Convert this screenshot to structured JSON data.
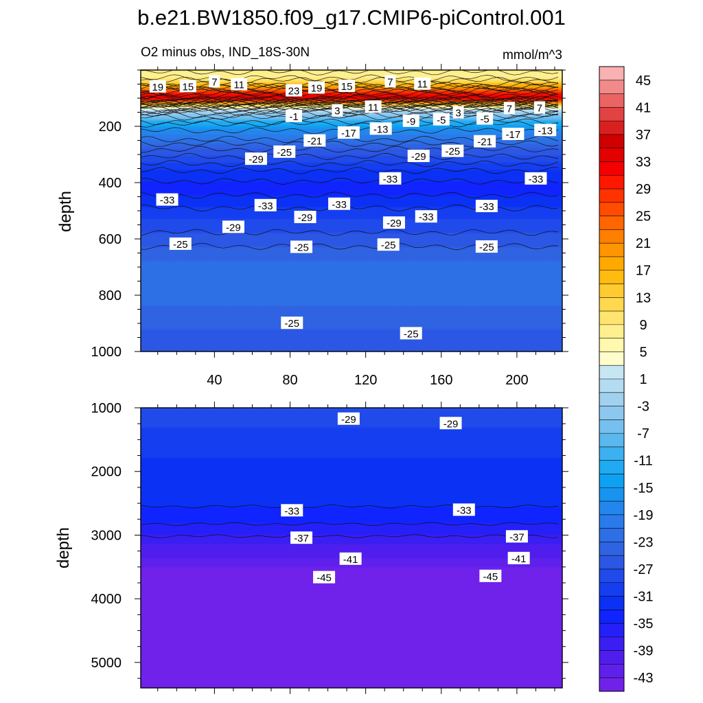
{
  "title": "b.e21.BW1850.f09_g17.CMIP6-piControl.001",
  "subtitle_left": "O2 minus obs, IND_18S-30N",
  "subtitle_right": "mmol/m^3",
  "chart_data": {
    "type": "heatmap",
    "x": {
      "range": [
        1,
        224
      ],
      "ticks": [
        40,
        80,
        120,
        160,
        200
      ],
      "label": ""
    },
    "panels": [
      {
        "name": "upper",
        "ylabel": "depth",
        "ylim": [
          0,
          1000
        ],
        "yticks": [
          200,
          400,
          600,
          800,
          1000
        ],
        "profile": [
          {
            "depth": 0,
            "value": 10
          },
          {
            "depth": 20,
            "value": 7
          },
          {
            "depth": 45,
            "value": 13
          },
          {
            "depth": 70,
            "value": 24
          },
          {
            "depth": 85,
            "value": 30
          },
          {
            "depth": 100,
            "value": 34
          },
          {
            "depth": 115,
            "value": 22
          },
          {
            "depth": 130,
            "value": 8
          },
          {
            "depth": 150,
            "value": -2
          },
          {
            "depth": 175,
            "value": -9
          },
          {
            "depth": 200,
            "value": -15
          },
          {
            "depth": 230,
            "value": -19
          },
          {
            "depth": 270,
            "value": -24
          },
          {
            "depth": 320,
            "value": -28
          },
          {
            "depth": 370,
            "value": -32
          },
          {
            "depth": 420,
            "value": -34
          },
          {
            "depth": 470,
            "value": -32
          },
          {
            "depth": 530,
            "value": -29
          },
          {
            "depth": 600,
            "value": -26
          },
          {
            "depth": 680,
            "value": -23
          },
          {
            "depth": 760,
            "value": -21
          },
          {
            "depth": 840,
            "value": -23
          },
          {
            "depth": 920,
            "value": -25
          },
          {
            "depth": 1000,
            "value": -27
          }
        ],
        "contour_labels": [
          {
            "text": "19",
            "x": 10,
            "depth": 58
          },
          {
            "text": "15",
            "x": 26,
            "depth": 57
          },
          {
            "text": "7",
            "x": 40,
            "depth": 40
          },
          {
            "text": "11",
            "x": 53,
            "depth": 50
          },
          {
            "text": "23",
            "x": 82,
            "depth": 72
          },
          {
            "text": "19",
            "x": 94,
            "depth": 62
          },
          {
            "text": "15",
            "x": 110,
            "depth": 56
          },
          {
            "text": "7",
            "x": 133,
            "depth": 40
          },
          {
            "text": "11",
            "x": 150,
            "depth": 48
          },
          {
            "text": "-1",
            "x": 82,
            "depth": 163
          },
          {
            "text": "3",
            "x": 105,
            "depth": 143
          },
          {
            "text": "11",
            "x": 124,
            "depth": 130
          },
          {
            "text": "-9",
            "x": 144,
            "depth": 180
          },
          {
            "text": "-5",
            "x": 160,
            "depth": 175
          },
          {
            "text": "3",
            "x": 169,
            "depth": 150
          },
          {
            "text": "-5",
            "x": 183,
            "depth": 172
          },
          {
            "text": "7",
            "x": 196,
            "depth": 135
          },
          {
            "text": "7",
            "x": 212,
            "depth": 133
          },
          {
            "text": "-21",
            "x": 93,
            "depth": 250
          },
          {
            "text": "-17",
            "x": 111,
            "depth": 222
          },
          {
            "text": "-13",
            "x": 128,
            "depth": 208
          },
          {
            "text": "-21",
            "x": 183,
            "depth": 253
          },
          {
            "text": "-17",
            "x": 198,
            "depth": 227
          },
          {
            "text": "-13",
            "x": 215,
            "depth": 213
          },
          {
            "text": "-25",
            "x": 77,
            "depth": 290
          },
          {
            "text": "-29",
            "x": 62,
            "depth": 315
          },
          {
            "text": "-29",
            "x": 148,
            "depth": 305
          },
          {
            "text": "-25",
            "x": 166,
            "depth": 287
          },
          {
            "text": "-33",
            "x": 133,
            "depth": 385
          },
          {
            "text": "-33",
            "x": 210,
            "depth": 385
          },
          {
            "text": "-33",
            "x": 15,
            "depth": 460
          },
          {
            "text": "-33",
            "x": 67,
            "depth": 480
          },
          {
            "text": "-33",
            "x": 106,
            "depth": 475
          },
          {
            "text": "-33",
            "x": 184,
            "depth": 483
          },
          {
            "text": "-29",
            "x": 50,
            "depth": 557
          },
          {
            "text": "-29",
            "x": 88,
            "depth": 522
          },
          {
            "text": "-29",
            "x": 135,
            "depth": 542
          },
          {
            "text": "-33",
            "x": 152,
            "depth": 520
          },
          {
            "text": "-25",
            "x": 22,
            "depth": 617
          },
          {
            "text": "-25",
            "x": 86,
            "depth": 628
          },
          {
            "text": "-25",
            "x": 132,
            "depth": 620
          },
          {
            "text": "-25",
            "x": 184,
            "depth": 627
          },
          {
            "text": "-25",
            "x": 81,
            "depth": 898
          },
          {
            "text": "-25",
            "x": 144,
            "depth": 935
          }
        ]
      },
      {
        "name": "lower",
        "ylabel": "depth",
        "ylim": [
          1000,
          5400
        ],
        "yticks": [
          1000,
          2000,
          3000,
          4000,
          5000
        ],
        "profile": [
          {
            "depth": 1000,
            "value": -27
          },
          {
            "depth": 1300,
            "value": -29
          },
          {
            "depth": 1800,
            "value": -31
          },
          {
            "depth": 2400,
            "value": -32
          },
          {
            "depth": 2700,
            "value": -34
          },
          {
            "depth": 2950,
            "value": -36
          },
          {
            "depth": 3150,
            "value": -39
          },
          {
            "depth": 3350,
            "value": -41
          },
          {
            "depth": 3500,
            "value": -43
          },
          {
            "depth": 3700,
            "value": -44.5
          },
          {
            "depth": 5400,
            "value": -44.5
          }
        ],
        "contour_labels": [
          {
            "text": "-29",
            "x": 111,
            "depth": 1170
          },
          {
            "text": "-29",
            "x": 165,
            "depth": 1240
          },
          {
            "text": "-33",
            "x": 81,
            "depth": 2610
          },
          {
            "text": "-33",
            "x": 172,
            "depth": 2600
          },
          {
            "text": "-37",
            "x": 86,
            "depth": 3040
          },
          {
            "text": "-37",
            "x": 200,
            "depth": 3020
          },
          {
            "text": "-41",
            "x": 112,
            "depth": 3370
          },
          {
            "text": "-41",
            "x": 201,
            "depth": 3360
          },
          {
            "text": "-45",
            "x": 98,
            "depth": 3660
          },
          {
            "text": "-45",
            "x": 186,
            "depth": 3640
          }
        ]
      }
    ],
    "colorbar": {
      "labels": [
        "45",
        "41",
        "37",
        "33",
        "29",
        "25",
        "21",
        "17",
        "13",
        "9",
        "5",
        "1",
        "-3",
        "-7",
        "-11",
        "-15",
        "-19",
        "-23",
        "-27",
        "-31",
        "-35",
        "-39",
        "-43"
      ],
      "levels_top_to_bottom": [
        47,
        45,
        43,
        41,
        39,
        37,
        35,
        33,
        31,
        29,
        27,
        25,
        23,
        21,
        19,
        17,
        15,
        13,
        11,
        9,
        7,
        5,
        3,
        1,
        -1,
        -3,
        -5,
        -7,
        -9,
        -11,
        -13,
        -15,
        -17,
        -19,
        -21,
        -23,
        -25,
        -27,
        -29,
        -31,
        -33,
        -35,
        -37,
        -39,
        -41,
        -43,
        -45
      ],
      "colors_top_to_bottom": [
        "#f9b1b1",
        "#f18b8b",
        "#ea6464",
        "#e24242",
        "#d92020",
        "#d00000",
        "#e20000",
        "#f40000",
        "#ff1700",
        "#ff3300",
        "#ff4c00",
        "#ff6600",
        "#ff7f00",
        "#ff9500",
        "#ffa900",
        "#ffbb10",
        "#ffcb30",
        "#ffd84f",
        "#ffe46f",
        "#fff08f",
        "#fff8ae",
        "#fffdcc",
        "#c7e6f4",
        "#b4dcf0",
        "#a0d1ee",
        "#8cc8ee",
        "#75c0ee",
        "#5ab8ef",
        "#3db0f0",
        "#1faaf2",
        "#0ea1f1",
        "#1893ef",
        "#2386ec",
        "#2a7aea",
        "#2d6fe5",
        "#2f63e2",
        "#2b57e4",
        "#204aea",
        "#153ef0",
        "#0b31f5",
        "#1024ff",
        "#2520f8",
        "#3a1ef2",
        "#4f1eee",
        "#6020ec",
        "#7022ea"
      ]
    }
  }
}
